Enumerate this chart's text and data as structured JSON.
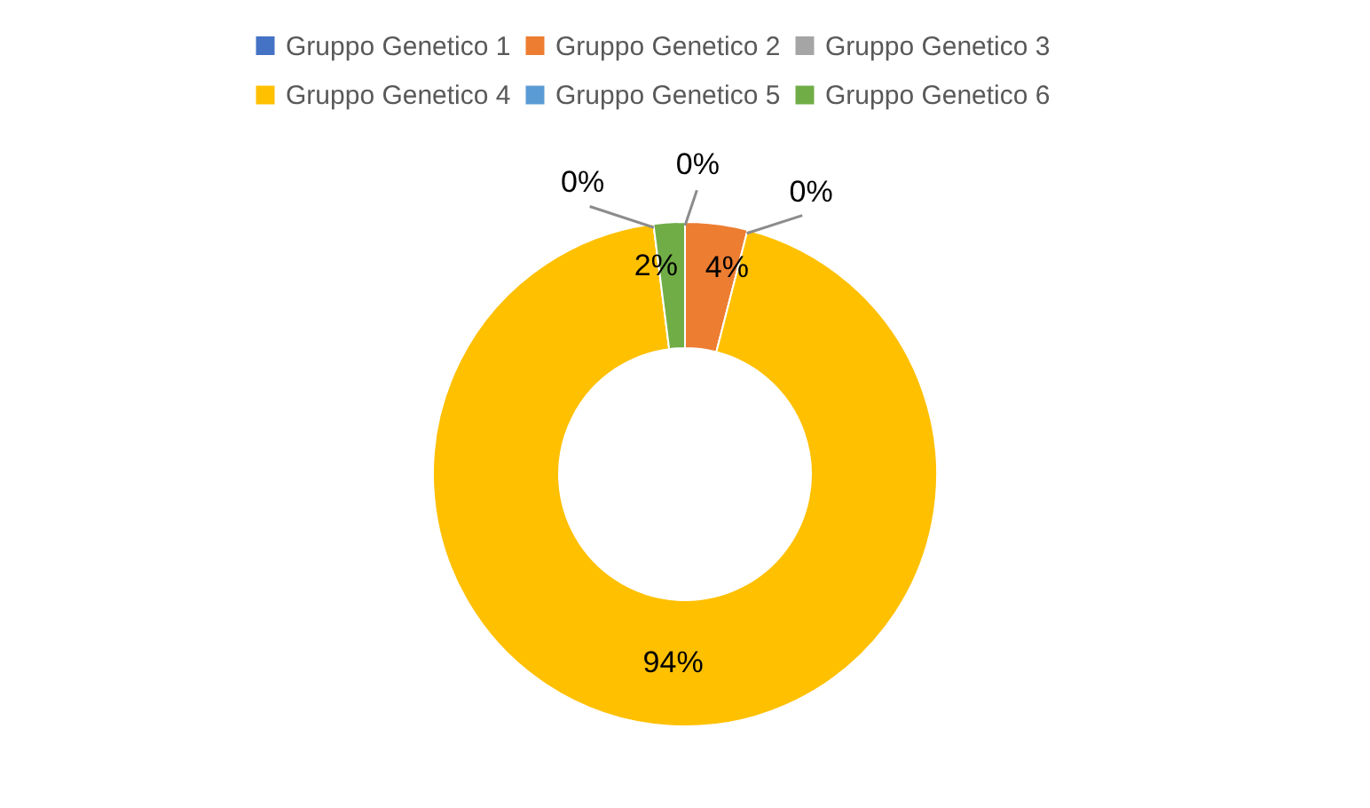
{
  "chart_data": {
    "type": "donut",
    "categories": [
      "Gruppo Genetico 1",
      "Gruppo Genetico 2",
      "Gruppo Genetico 3",
      "Gruppo Genetico 4",
      "Gruppo Genetico 5",
      "Gruppo Genetico 6"
    ],
    "values": [
      0,
      4,
      0,
      94,
      0,
      2
    ],
    "colors": [
      "#4472c4",
      "#ed7d31",
      "#a5a5a5",
      "#ffc000",
      "#5b9bd5",
      "#70ad47"
    ],
    "value_labels": [
      "0%",
      "4%",
      "0%",
      "94%",
      "0%",
      "2%"
    ],
    "legend": "top"
  }
}
